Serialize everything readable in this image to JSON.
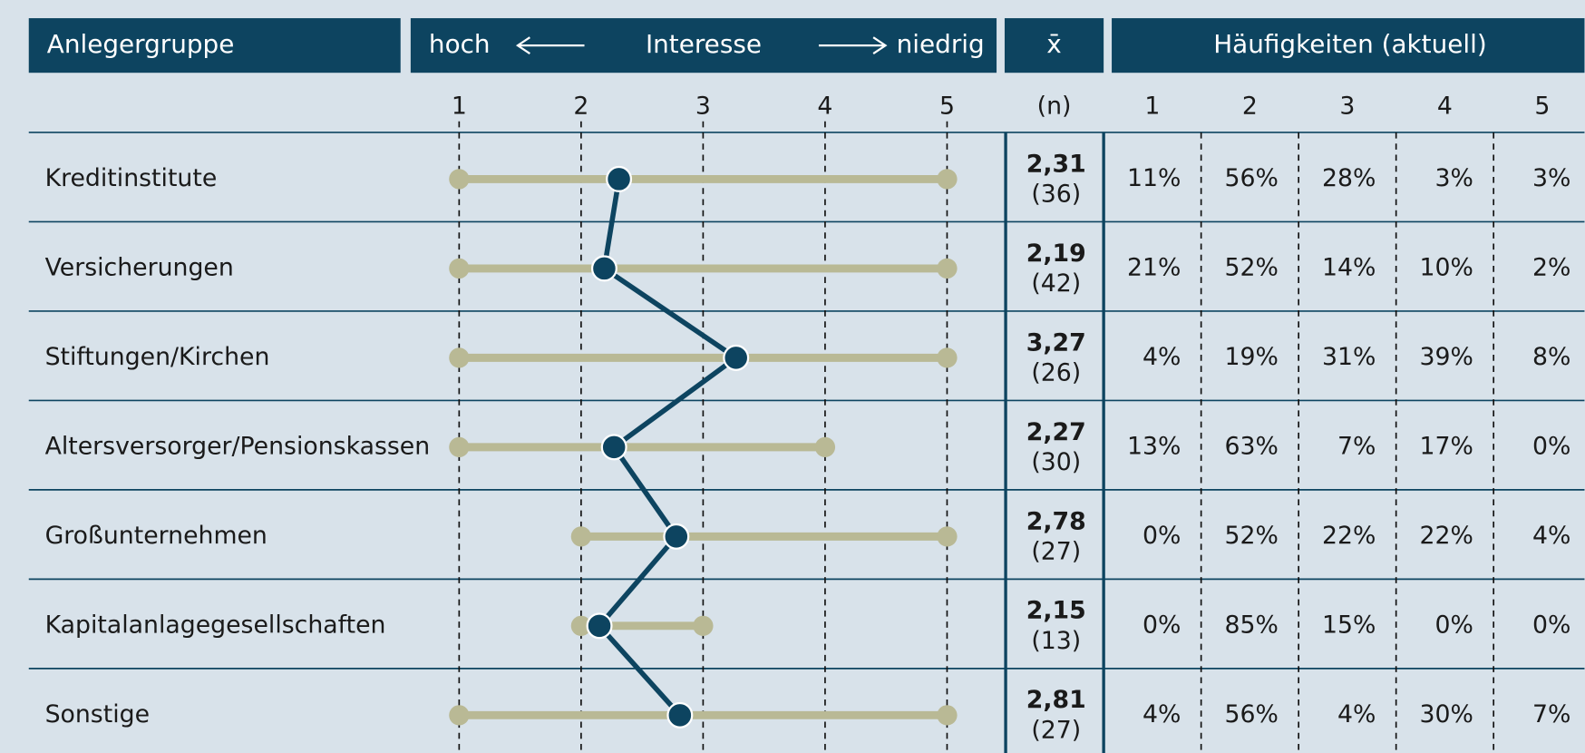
{
  "header": {
    "group": "Anlegergruppe",
    "high": "hoch",
    "interest": "Interesse",
    "low": "niedrig",
    "mean": "x̄",
    "frequencies": "Häufigkeiten (aktuell)",
    "n": "(n)"
  },
  "scale": {
    "xlim": [
      1,
      5
    ],
    "ticks": [
      1,
      2,
      3,
      4,
      5
    ],
    "range_color": "#b9b995",
    "mean_color": "#0d4460"
  },
  "freq_columns": [
    1,
    2,
    3,
    4,
    5
  ],
  "rows": [
    {
      "name": "Kreditinstitute",
      "min": 1,
      "max": 5,
      "mean": {
        "value": 2.31,
        "label": "2,31"
      },
      "n": {
        "value": 36,
        "label": "(36)"
      },
      "shares": [
        11,
        56,
        28,
        3,
        3
      ],
      "share_labels": [
        "11%",
        "56%",
        "28%",
        "3%",
        "3%"
      ]
    },
    {
      "name": "Versicherungen",
      "min": 1,
      "max": 5,
      "mean": {
        "value": 2.19,
        "label": "2,19"
      },
      "n": {
        "value": 42,
        "label": "(42)"
      },
      "shares": [
        21,
        52,
        14,
        10,
        2
      ],
      "share_labels": [
        "21%",
        "52%",
        "14%",
        "10%",
        "2%"
      ]
    },
    {
      "name": "Stiftungen/Kirchen",
      "min": 1,
      "max": 5,
      "mean": {
        "value": 3.27,
        "label": "3,27"
      },
      "n": {
        "value": 26,
        "label": "(26)"
      },
      "shares": [
        4,
        19,
        31,
        39,
        8
      ],
      "share_labels": [
        "4%",
        "19%",
        "31%",
        "39%",
        "8%"
      ]
    },
    {
      "name": "Altersversorger/Pensionskassen",
      "min": 1,
      "max": 4,
      "mean": {
        "value": 2.27,
        "label": "2,27"
      },
      "n": {
        "value": 30,
        "label": "(30)"
      },
      "shares": [
        13,
        63,
        7,
        17,
        0
      ],
      "share_labels": [
        "13%",
        "63%",
        "7%",
        "17%",
        "0%"
      ]
    },
    {
      "name": "Großunternehmen",
      "min": 2,
      "max": 5,
      "mean": {
        "value": 2.78,
        "label": "2,78"
      },
      "n": {
        "value": 27,
        "label": "(27)"
      },
      "shares": [
        0,
        52,
        22,
        22,
        4
      ],
      "share_labels": [
        "0%",
        "52%",
        "22%",
        "22%",
        "4%"
      ]
    },
    {
      "name": "Kapitalanlagegesellschaften",
      "min": 2,
      "max": 3,
      "mean": {
        "value": 2.15,
        "label": "2,15"
      },
      "n": {
        "value": 13,
        "label": "(13)"
      },
      "shares": [
        0,
        85,
        15,
        0,
        0
      ],
      "share_labels": [
        "0%",
        "85%",
        "15%",
        "0%",
        "0%"
      ]
    },
    {
      "name": "Sonstige",
      "min": 1,
      "max": 5,
      "mean": {
        "value": 2.81,
        "label": "2,81"
      },
      "n": {
        "value": 27,
        "label": "(27)"
      },
      "shares": [
        4,
        56,
        4,
        30,
        7
      ],
      "share_labels": [
        "4%",
        "56%",
        "4%",
        "30%",
        "7%"
      ]
    }
  ]
}
